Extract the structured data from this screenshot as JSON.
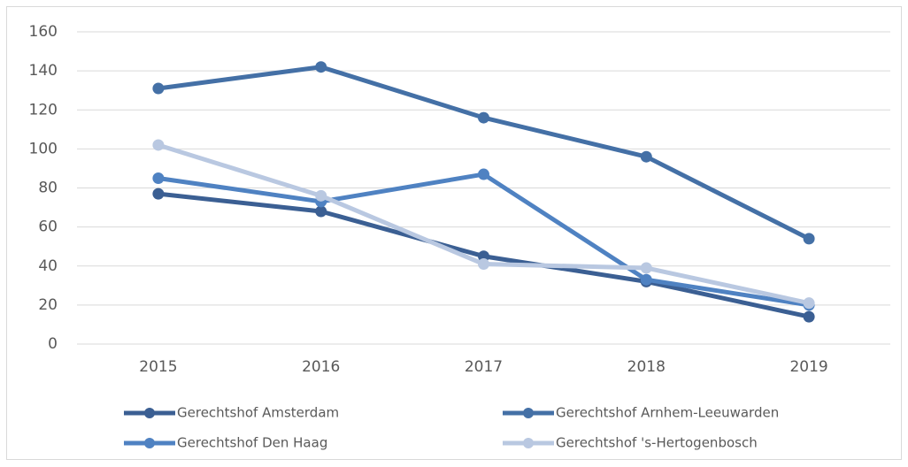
{
  "chart_data": {
    "type": "line",
    "categories": [
      "2015",
      "2016",
      "2017",
      "2018",
      "2019"
    ],
    "series": [
      {
        "name": "Gerechtshof Amsterdam",
        "color": "#3b5f93",
        "values": [
          77,
          68,
          45,
          32,
          14
        ]
      },
      {
        "name": "Gerechtshof Arnhem-Leeuwarden",
        "color": "#4470a6",
        "values": [
          131,
          142,
          116,
          96,
          54
        ]
      },
      {
        "name": "Gerechtshof Den Haag",
        "color": "#4f82c2",
        "values": [
          85,
          73,
          87,
          33,
          20
        ]
      },
      {
        "name": "Gerechtshof 's-Hertogenbosch",
        "color": "#b9c8e1",
        "values": [
          102,
          76,
          41,
          39,
          21
        ]
      }
    ],
    "ylim": [
      0,
      160
    ],
    "yticks": [
      0,
      20,
      40,
      60,
      80,
      100,
      120,
      140,
      160
    ],
    "grid": true
  }
}
